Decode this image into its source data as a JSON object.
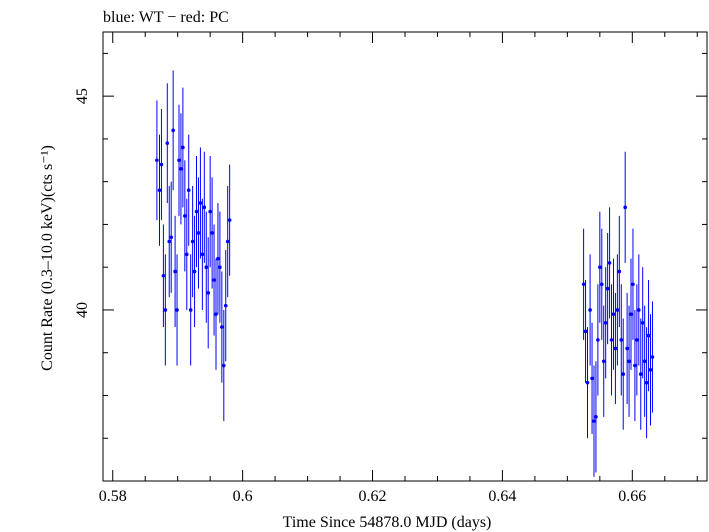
{
  "chart_data": {
    "type": "scatter",
    "title": "blue: WT − red: PC",
    "xlabel": "Time Since 54878.0 MJD (days)",
    "ylabel": "Count Rate (0.3–10.0 keV)(cts s⁻¹)",
    "xlim": [
      0.5785,
      0.6715
    ],
    "ylim": [
      36.0,
      46.5
    ],
    "x_ticks": [
      "0.58",
      "0.6",
      "0.62",
      "0.64",
      "0.66"
    ],
    "y_ticks": [
      "40",
      "45"
    ],
    "grid": false,
    "colors": {
      "WT": "#0000ff",
      "PC": "#ff0000"
    },
    "series": [
      {
        "name": "WT",
        "points": [
          [
            0.5868,
            43.5,
            1.4
          ],
          [
            0.5872,
            42.8,
            1.3
          ],
          [
            0.5875,
            43.4,
            1.3
          ],
          [
            0.5878,
            40.8,
            1.2
          ],
          [
            0.5881,
            40.0,
            1.3
          ],
          [
            0.5884,
            43.9,
            1.4
          ],
          [
            0.5887,
            41.6,
            1.3
          ],
          [
            0.589,
            41.7,
            1.3
          ],
          [
            0.5893,
            44.2,
            1.4
          ],
          [
            0.5896,
            40.9,
            1.3
          ],
          [
            0.5899,
            40.0,
            1.3
          ],
          [
            0.5902,
            43.5,
            1.3
          ],
          [
            0.5905,
            43.3,
            1.3
          ],
          [
            0.5908,
            43.8,
            1.4
          ],
          [
            0.5911,
            42.2,
            1.3
          ],
          [
            0.5914,
            41.3,
            1.3
          ],
          [
            0.5917,
            42.8,
            1.3
          ],
          [
            0.592,
            40.0,
            1.3
          ],
          [
            0.5923,
            41.6,
            1.3
          ],
          [
            0.5926,
            40.9,
            1.3
          ],
          [
            0.5929,
            42.3,
            1.3
          ],
          [
            0.5932,
            41.8,
            1.3
          ],
          [
            0.5935,
            42.5,
            1.3
          ],
          [
            0.5938,
            41.3,
            1.3
          ],
          [
            0.5941,
            42.4,
            1.3
          ],
          [
            0.5944,
            41.0,
            1.3
          ],
          [
            0.5947,
            40.4,
            1.3
          ],
          [
            0.595,
            42.3,
            1.3
          ],
          [
            0.5953,
            41.8,
            1.3
          ],
          [
            0.5956,
            40.7,
            1.3
          ],
          [
            0.5959,
            39.9,
            1.3
          ],
          [
            0.5962,
            41.2,
            1.3
          ],
          [
            0.5965,
            41.0,
            1.3
          ],
          [
            0.5968,
            39.6,
            1.3
          ],
          [
            0.5971,
            38.7,
            1.3
          ],
          [
            0.5974,
            40.1,
            1.3
          ],
          [
            0.5977,
            41.6,
            1.3
          ],
          [
            0.598,
            42.1,
            1.3
          ]
        ]
      },
      {
        "name": "PC",
        "points": [
          [
            0.6525,
            40.6,
            1.3
          ],
          [
            0.6528,
            39.5,
            1.2
          ],
          [
            0.6531,
            38.3,
            1.3
          ],
          [
            0.6535,
            40.0,
            1.3
          ],
          [
            0.6538,
            38.4,
            1.3
          ],
          [
            0.6541,
            37.4,
            1.3
          ],
          [
            0.6544,
            37.5,
            1.3
          ],
          [
            0.6547,
            39.3,
            1.3
          ],
          [
            0.655,
            41.0,
            1.3
          ],
          [
            0.6553,
            40.6,
            1.3
          ],
          [
            0.6556,
            38.8,
            1.3
          ],
          [
            0.6559,
            39.7,
            1.3
          ],
          [
            0.6562,
            40.5,
            1.3
          ],
          [
            0.6565,
            41.1,
            1.3
          ],
          [
            0.6568,
            39.3,
            1.3
          ],
          [
            0.6571,
            39.9,
            1.3
          ],
          [
            0.6574,
            39.1,
            1.3
          ],
          [
            0.6577,
            40.0,
            1.3
          ],
          [
            0.658,
            40.9,
            1.3
          ],
          [
            0.6583,
            39.3,
            1.3
          ],
          [
            0.6586,
            38.5,
            1.3
          ],
          [
            0.6589,
            42.4,
            1.3
          ],
          [
            0.6592,
            39.1,
            1.3
          ],
          [
            0.6595,
            38.8,
            1.3
          ],
          [
            0.6598,
            39.9,
            1.3
          ],
          [
            0.6601,
            40.6,
            1.3
          ],
          [
            0.6604,
            38.7,
            1.3
          ],
          [
            0.6607,
            39.3,
            1.3
          ],
          [
            0.661,
            40.0,
            1.3
          ],
          [
            0.6613,
            38.5,
            1.3
          ],
          [
            0.6616,
            39.7,
            1.3
          ],
          [
            0.6619,
            38.8,
            1.3
          ],
          [
            0.6622,
            38.3,
            1.3
          ],
          [
            0.6625,
            39.4,
            1.3
          ],
          [
            0.6628,
            38.6,
            1.3
          ],
          [
            0.6631,
            38.9,
            1.3
          ]
        ]
      }
    ]
  }
}
